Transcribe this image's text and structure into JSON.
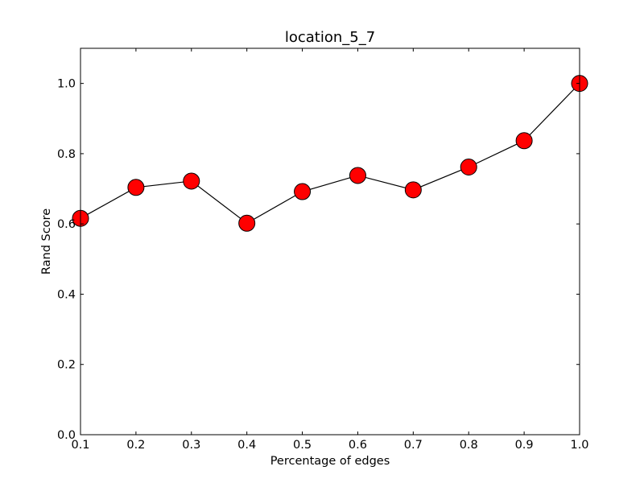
{
  "chart_data": {
    "type": "line",
    "title": "location_5_7",
    "xlabel": "Percentage of edges",
    "ylabel": "Rand Score",
    "xlim": [
      0.1,
      1.0
    ],
    "ylim": [
      0.0,
      1.1
    ],
    "x_ticks": [
      "0.1",
      "0.2",
      "0.3",
      "0.4",
      "0.5",
      "0.6",
      "0.7",
      "0.8",
      "0.9",
      "1.0"
    ],
    "y_ticks": [
      "0.0",
      "0.2",
      "0.4",
      "0.6",
      "0.8",
      "1.0"
    ],
    "grid": false,
    "legend": false,
    "series": [
      {
        "x": [
          0.1,
          0.2,
          0.3,
          0.4,
          0.5,
          0.6,
          0.7,
          0.8,
          0.9,
          1.0
        ],
        "y": [
          0.616,
          0.704,
          0.722,
          0.602,
          0.692,
          0.738,
          0.697,
          0.762,
          0.837,
          1.0
        ],
        "line_color": "#000000",
        "marker": "circle",
        "marker_color": "#ff0000",
        "marker_edge_color": "#000000"
      }
    ]
  }
}
